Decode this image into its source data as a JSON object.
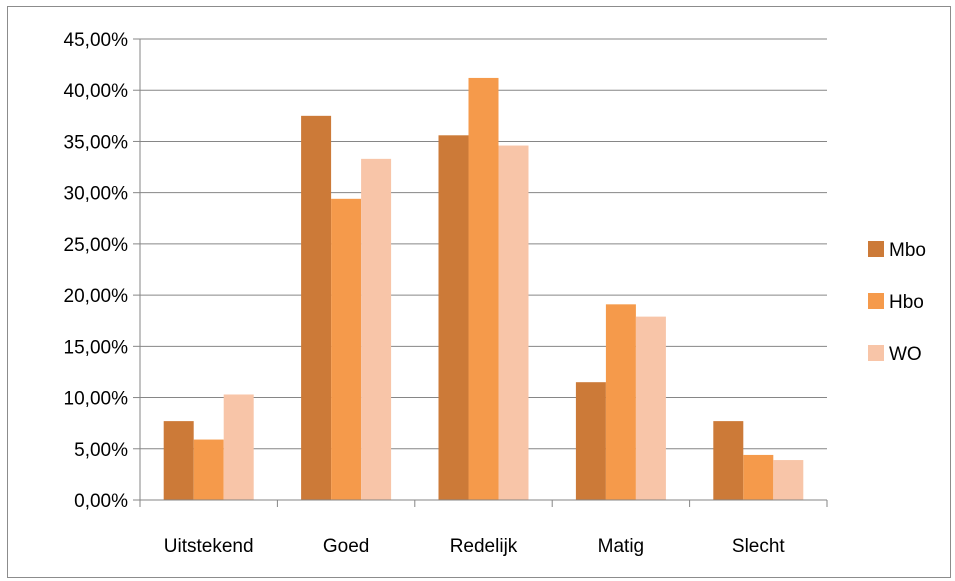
{
  "chart_data": {
    "type": "bar",
    "categories": [
      "Uitstekend",
      "Goed",
      "Redelijk",
      "Matig",
      "Slecht"
    ],
    "series": [
      {
        "name": "Mbo",
        "color": "#cc7a38",
        "values": [
          7.7,
          37.5,
          35.6,
          11.5,
          7.7
        ]
      },
      {
        "name": "Hbo",
        "color": "#f59a4b",
        "values": [
          5.9,
          29.4,
          41.2,
          19.1,
          4.4
        ]
      },
      {
        "name": "WO",
        "color": "#f8c5a8",
        "values": [
          10.3,
          33.3,
          34.6,
          17.9,
          3.9
        ]
      }
    ],
    "ylim": [
      0,
      45
    ],
    "yticks": [
      {
        "value": 0,
        "label": "0,00%"
      },
      {
        "value": 5,
        "label": "5,00%"
      },
      {
        "value": 10,
        "label": "10,00%"
      },
      {
        "value": 15,
        "label": "15,00%"
      },
      {
        "value": 20,
        "label": "20,00%"
      },
      {
        "value": 25,
        "label": "25,00%"
      },
      {
        "value": 30,
        "label": "30,00%"
      },
      {
        "value": 35,
        "label": "35,00%"
      },
      {
        "value": 40,
        "label": "40,00%"
      },
      {
        "value": 45,
        "label": "45,00%"
      }
    ],
    "grid": true,
    "legend_position": "right",
    "gridline_color": "#868686",
    "axis_color": "#868686"
  }
}
